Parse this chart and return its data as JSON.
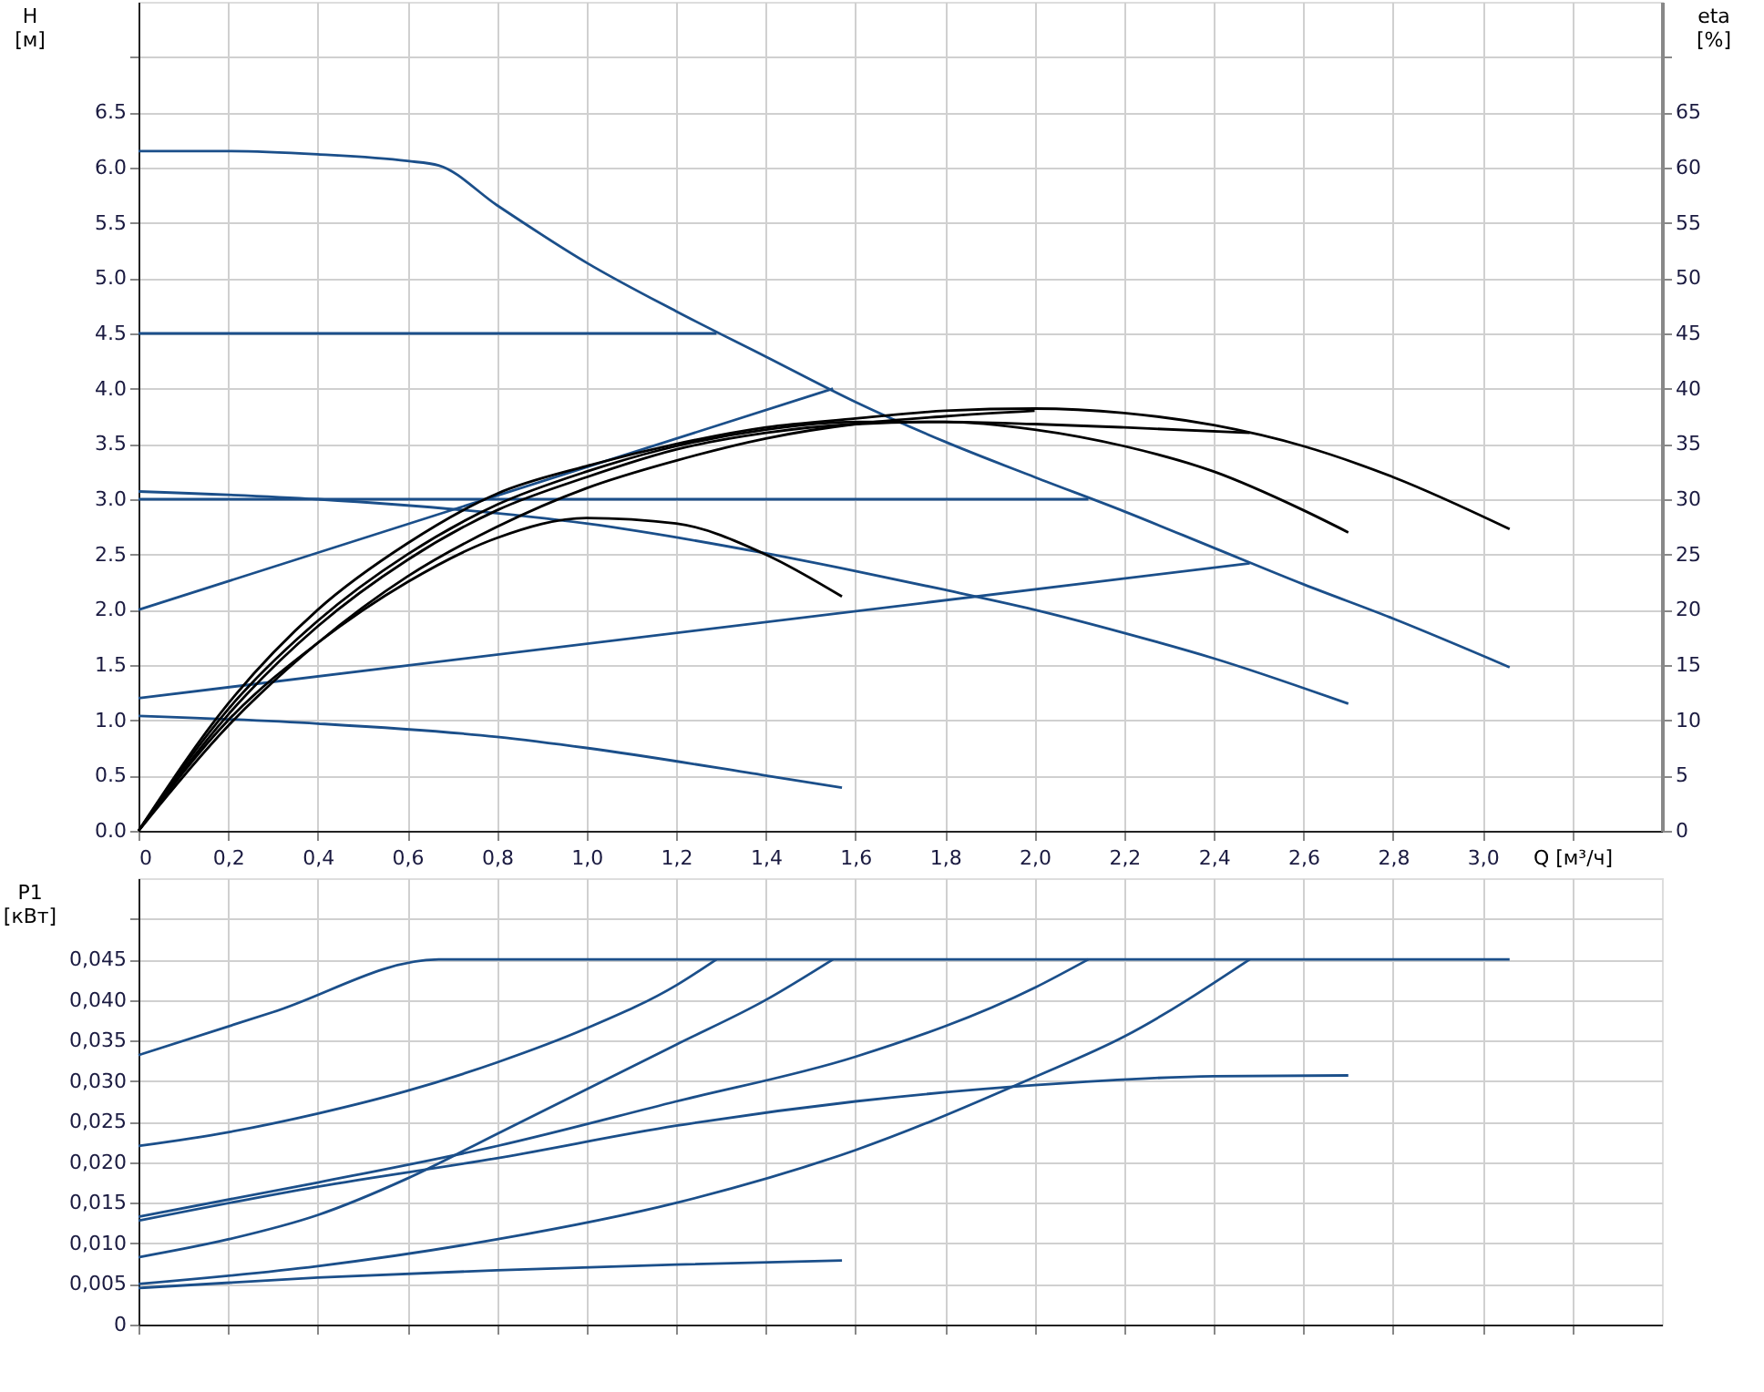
{
  "chart_data": [
    {
      "type": "line",
      "xlabel": "Q [м³/ч]",
      "ylabel": "H [м]",
      "y2label": "eta [%]",
      "grid": true,
      "legend": false,
      "marker": "none",
      "line_style": "solid",
      "xlim": [
        0,
        3.4
      ],
      "ylim": [
        0,
        7.5
      ],
      "y2lim": [
        0,
        75
      ],
      "xticks": [
        {
          "value": 0,
          "label": "0"
        },
        {
          "value": 0.2,
          "label": "0,2"
        },
        {
          "value": 0.4,
          "label": "0,4"
        },
        {
          "value": 0.6,
          "label": "0,6"
        },
        {
          "value": 0.8,
          "label": "0,8"
        },
        {
          "value": 1.0,
          "label": "1,0"
        },
        {
          "value": 1.2,
          "label": "1,2"
        },
        {
          "value": 1.4,
          "label": "1,4"
        },
        {
          "value": 1.6,
          "label": "1,6"
        },
        {
          "value": 1.8,
          "label": "1,8"
        },
        {
          "value": 2.0,
          "label": "2,0"
        },
        {
          "value": 2.2,
          "label": "2,2"
        },
        {
          "value": 2.4,
          "label": "2,4"
        },
        {
          "value": 2.6,
          "label": "2,6"
        },
        {
          "value": 2.8,
          "label": "2,8"
        },
        {
          "value": 3.0,
          "label": "3,0"
        },
        {
          "value": 3.2,
          "label": null
        }
      ],
      "yticks": [
        {
          "value": 0,
          "label": "0.0"
        },
        0.5,
        {
          "value": 1,
          "label": "1.0"
        },
        1.5,
        {
          "value": 2,
          "label": "2.0"
        },
        2.5,
        {
          "value": 3,
          "label": "3.0"
        },
        3.5,
        {
          "value": 4,
          "label": "4.0"
        },
        4.5,
        {
          "value": 5,
          "label": "5.0"
        },
        5.5,
        {
          "value": 6,
          "label": "6.0"
        },
        6.5,
        {
          "value": 7,
          "label": null
        }
      ],
      "y2ticks": [
        0,
        5,
        10,
        15,
        20,
        25,
        30,
        35,
        40,
        45,
        50,
        55,
        60,
        65,
        {
          "value": 70,
          "label": null
        }
      ],
      "series": [
        {
          "color": "#1b4f8a",
          "x": [
            0,
            0.2,
            0.4,
            0.6,
            0.67,
            0.8,
            1.0,
            1.2,
            1.4,
            1.6,
            1.8,
            2.0,
            2.2,
            2.4,
            2.6,
            2.8,
            3.06
          ],
          "values": [
            6.15,
            6.15,
            6.12,
            6.06,
            6.02,
            5.66,
            5.14,
            4.7,
            4.29,
            3.88,
            3.52,
            3.2,
            2.89,
            2.56,
            2.23,
            1.92,
            1.48
          ]
        },
        {
          "color": "#1b4f8a",
          "x": [
            0,
            1.29
          ],
          "values": [
            4.5,
            4.5
          ]
        },
        {
          "color": "#1b4f8a",
          "x": [
            0,
            2.12
          ],
          "values": [
            3.0,
            3.0
          ]
        },
        {
          "color": "#1b4f8a",
          "x": [
            0,
            1.55
          ],
          "values": [
            2.0,
            4.0
          ]
        },
        {
          "color": "#1b4f8a",
          "x": [
            0,
            2.48
          ],
          "values": [
            1.2,
            2.42
          ]
        },
        {
          "color": "#1b4f8a",
          "x": [
            0,
            0.4,
            1.0,
            1.4,
            1.6,
            1.8,
            2.0,
            2.2,
            2.4,
            2.7
          ],
          "values": [
            3.07,
            3.0,
            2.78,
            2.51,
            2.35,
            2.18,
            2.0,
            1.79,
            1.56,
            1.15
          ]
        },
        {
          "color": "#1b4f8a",
          "x": [
            0,
            0.4,
            0.8,
            1.0,
            1.4,
            1.57
          ],
          "values": [
            1.04,
            0.97,
            0.85,
            0.75,
            0.5,
            0.39
          ]
        },
        {
          "color": "#000000",
          "axis": "y2",
          "x": [
            0,
            0.2,
            0.4,
            0.6,
            0.8,
            1.0,
            1.2,
            1.4,
            1.57
          ],
          "values": [
            0,
            10,
            17,
            22.5,
            26.5,
            28.3,
            27.8,
            25,
            21.2
          ]
        },
        {
          "color": "#000000",
          "axis": "y2",
          "x": [
            0,
            0.2,
            0.4,
            0.6,
            0.8,
            1.0,
            1.2,
            1.4,
            1.6,
            1.8,
            2.0,
            2.2,
            2.4,
            2.6,
            2.7
          ],
          "values": [
            0,
            11,
            19,
            25,
            29.5,
            32.5,
            34.8,
            36.3,
            37,
            37,
            36.3,
            34.8,
            32.5,
            29,
            27
          ]
        },
        {
          "color": "#000000",
          "axis": "y2",
          "x": [
            0,
            0.2,
            0.4,
            0.6,
            0.8,
            1.0,
            1.2,
            1.4,
            1.6,
            1.8,
            2.0,
            2.2,
            2.4,
            2.6,
            2.8,
            3.06
          ],
          "values": [
            0,
            11.5,
            20,
            26,
            30.5,
            33,
            35,
            36.5,
            37.3,
            38,
            38.2,
            37.8,
            36.7,
            34.8,
            32,
            27.3
          ]
        },
        {
          "color": "#000000",
          "axis": "y2",
          "x": [
            0,
            0.2,
            0.4,
            0.6,
            0.8,
            1.0,
            1.2,
            1.4,
            1.6,
            1.8,
            2.0,
            2.2,
            2.48
          ],
          "values": [
            0,
            10.5,
            18.5,
            24.5,
            29,
            32,
            34.5,
            36,
            36.8,
            37,
            36.8,
            36.5,
            36
          ]
        },
        {
          "color": "#000000",
          "axis": "y2",
          "x": [
            0,
            0.2,
            0.4,
            0.6,
            0.8,
            1.0,
            1.2,
            1.4,
            1.6,
            1.8,
            2.0
          ],
          "values": [
            0,
            9.5,
            17,
            23,
            27.5,
            31,
            33.5,
            35.5,
            36.8,
            37.5,
            38
          ]
        }
      ]
    },
    {
      "type": "line",
      "ylabel": "P1 [кВт]",
      "grid": true,
      "legend": false,
      "marker": "none",
      "line_style": "solid",
      "tick_labels": "y",
      "xlim": [
        0,
        3.4
      ],
      "ylim": [
        0,
        0.055
      ],
      "xticks": [
        0,
        0.2,
        0.4,
        0.6,
        0.8,
        1.0,
        1.2,
        1.4,
        1.6,
        1.8,
        2.0,
        2.2,
        2.4,
        2.6,
        2.8,
        3.0,
        3.2
      ],
      "yticks": [
        0,
        {
          "value": 0.005,
          "label": "0,005"
        },
        {
          "value": 0.01,
          "label": "0,010"
        },
        {
          "value": 0.015,
          "label": "0,015"
        },
        {
          "value": 0.02,
          "label": "0,020"
        },
        {
          "value": 0.025,
          "label": "0,025"
        },
        {
          "value": 0.03,
          "label": "0,030"
        },
        {
          "value": 0.035,
          "label": "0,035"
        },
        {
          "value": 0.04,
          "label": "0,040"
        },
        {
          "value": 0.045,
          "label": "0,045"
        },
        {
          "value": 0.05,
          "label": null
        }
      ],
      "series": [
        {
          "color": "#1b4f8a",
          "x": [
            0,
            0.3,
            0.67,
            3.06
          ],
          "values": [
            0.0332,
            0.0385,
            0.045,
            0.045
          ]
        },
        {
          "color": "#1b4f8a",
          "x": [
            0,
            0.2,
            0.4,
            0.6,
            0.8,
            1.0,
            1.2,
            1.29
          ],
          "values": [
            0.022,
            0.0237,
            0.026,
            0.0288,
            0.0323,
            0.0365,
            0.0418,
            0.045
          ]
        },
        {
          "color": "#1b4f8a",
          "x": [
            0,
            0.2,
            0.4,
            0.6,
            0.8,
            1.0,
            1.2,
            1.4,
            1.55
          ],
          "values": [
            0.0083,
            0.0105,
            0.0135,
            0.018,
            0.0235,
            0.029,
            0.0345,
            0.04,
            0.045
          ]
        },
        {
          "color": "#1b4f8a",
          "x": [
            0,
            0.4,
            0.8,
            1.2,
            1.6,
            2.0,
            2.12
          ],
          "values": [
            0.0133,
            0.0175,
            0.022,
            0.0275,
            0.033,
            0.0415,
            0.045
          ]
        },
        {
          "color": "#1b4f8a",
          "x": [
            0,
            0.4,
            0.8,
            1.2,
            1.6,
            2.0,
            2.2,
            2.48
          ],
          "values": [
            0.005,
            0.0072,
            0.0105,
            0.015,
            0.0215,
            0.0305,
            0.0355,
            0.045
          ]
        },
        {
          "color": "#1b4f8a",
          "x": [
            0,
            0.4,
            0.8,
            1.2,
            1.6,
            2.0,
            2.4,
            2.7
          ],
          "values": [
            0.0128,
            0.017,
            0.0205,
            0.0245,
            0.0275,
            0.0295,
            0.0306,
            0.0307
          ]
        },
        {
          "color": "#1b4f8a",
          "x": [
            0,
            0.4,
            0.8,
            1.2,
            1.57
          ],
          "values": [
            0.0045,
            0.0058,
            0.0067,
            0.0074,
            0.0079
          ]
        }
      ]
    }
  ]
}
